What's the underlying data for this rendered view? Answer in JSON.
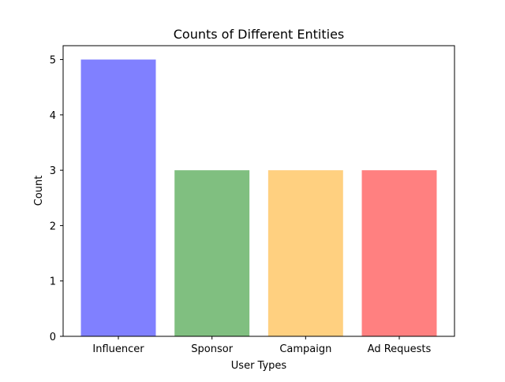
{
  "chart_data": {
    "type": "bar",
    "title": "Counts of Different Entities",
    "xlabel": "User Types",
    "ylabel": "Count",
    "categories": [
      "Influencer",
      "Sponsor",
      "Campaign",
      "Ad Requests"
    ],
    "values": [
      5,
      3,
      3,
      3
    ],
    "bar_colors": [
      "#8080ff",
      "#80bf80",
      "#ffd080",
      "#ff8080"
    ],
    "ylim": [
      0,
      5.25
    ],
    "yticks": [
      0,
      1,
      2,
      3,
      4,
      5
    ],
    "grid": false,
    "legend": "none"
  }
}
